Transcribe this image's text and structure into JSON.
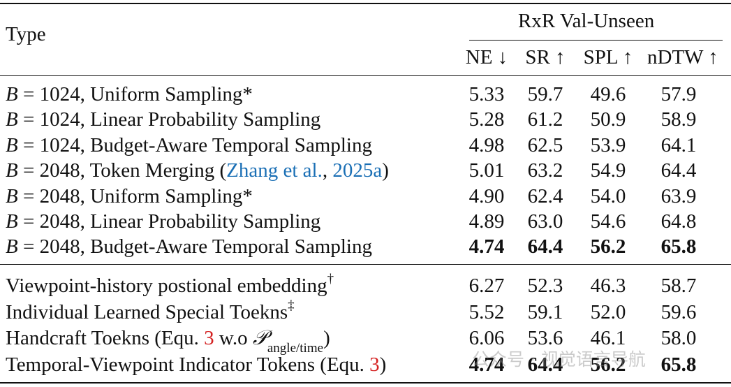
{
  "header": {
    "type_label": "Type",
    "group_label": "RxR Val-Unseen",
    "columns": [
      "NE ↓",
      "SR ↑",
      "SPL ↑",
      "nDTW ↑"
    ]
  },
  "section1": [
    {
      "b": "B",
      "eq": " = 1024, ",
      "method": "Uniform Sampling*",
      "vals": [
        "5.33",
        "59.7",
        "49.6",
        "57.9"
      ],
      "bold": false
    },
    {
      "b": "B",
      "eq": " = 1024, ",
      "method": "Linear Probability Sampling",
      "vals": [
        "5.28",
        "61.2",
        "50.9",
        "58.9"
      ],
      "bold": false
    },
    {
      "b": "B",
      "eq": " = 1024, ",
      "method": "Budget-Aware Temporal Sampling",
      "vals": [
        "4.98",
        "62.5",
        "53.9",
        "64.1"
      ],
      "bold": false
    },
    {
      "b": "B",
      "eq": " = 2048, ",
      "method": "Token Merging (",
      "cite_a": "Zhang et al.",
      "cite_sep": ", ",
      "cite_b": "2025a",
      "cite_end": ")",
      "vals": [
        "5.01",
        "63.2",
        "54.9",
        "64.4"
      ],
      "bold": false
    },
    {
      "b": "B",
      "eq": " = 2048, ",
      "method": "Uniform Sampling*",
      "vals": [
        "4.90",
        "62.4",
        "54.0",
        "63.9"
      ],
      "bold": false
    },
    {
      "b": "B",
      "eq": " = 2048, ",
      "method": "Linear Probability Sampling",
      "vals": [
        "4.89",
        "63.0",
        "54.6",
        "64.8"
      ],
      "bold": false
    },
    {
      "b": "B",
      "eq": " = 2048, ",
      "method": "Budget-Aware Temporal Sampling",
      "vals": [
        "4.74",
        "64.4",
        "56.2",
        "65.8"
      ],
      "bold": true
    }
  ],
  "section2": [
    {
      "label": "Viewpoint-history postional embedding",
      "sup": "†",
      "vals": [
        "6.27",
        "52.3",
        "46.3",
        "58.7"
      ],
      "bold": false
    },
    {
      "label": "Individual Learned Special Toekns",
      "sup": "‡",
      "vals": [
        "5.52",
        "59.1",
        "52.0",
        "59.6"
      ],
      "bold": false
    },
    {
      "label": "Handcraft Toekns (Equ. ",
      "ref": "3",
      "mid": " w.o ",
      "symbol": "𝒫",
      "sub": "angle/time",
      "end": ")",
      "vals": [
        "6.06",
        "53.6",
        "46.1",
        "58.0"
      ],
      "bold": false
    },
    {
      "label": "Temporal-Viewpoint Indicator Tokens (Equ. ",
      "ref": "3",
      "end": ")",
      "vals": [
        "4.74",
        "64.4",
        "56.2",
        "65.8"
      ],
      "bold": true
    }
  ],
  "watermark": "公众号 · 视觉语言导航"
}
